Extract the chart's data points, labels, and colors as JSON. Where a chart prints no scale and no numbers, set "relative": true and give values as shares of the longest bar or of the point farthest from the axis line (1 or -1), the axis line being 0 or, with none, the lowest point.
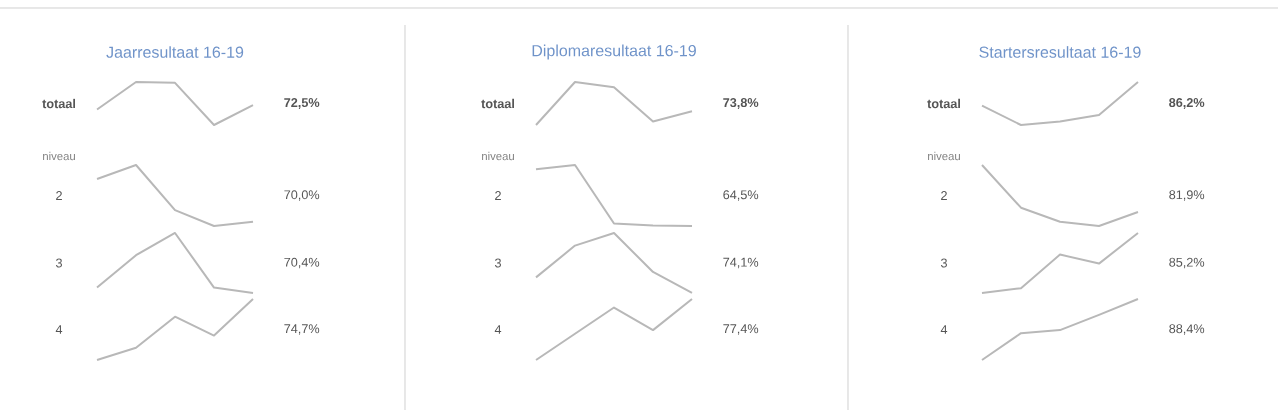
{
  "chart_data": [
    {
      "type": "line",
      "relative": true,
      "title": "Jaarresultaat 16-19",
      "annotations": [
        "72,5%"
      ],
      "categories": [
        null,
        null,
        null,
        null,
        null
      ],
      "series": [
        {
          "name": "totaal",
          "color": "#b8b8b8",
          "values": [
            0.36,
            1,
            0.98,
            0,
            0.46
          ]
        }
      ]
    },
    {
      "type": "line",
      "relative": true,
      "annotations": [
        "niveau",
        "70,0%"
      ],
      "categories": [
        null,
        null,
        null,
        null,
        null
      ],
      "series": [
        {
          "name": "2",
          "color": "#b8b8b8",
          "values": [
            0.77,
            1,
            0.26,
            0,
            0.07
          ]
        }
      ]
    },
    {
      "type": "line",
      "relative": true,
      "annotations": [
        "70,4%"
      ],
      "categories": [
        null,
        null,
        null,
        null,
        null
      ],
      "series": [
        {
          "name": "3",
          "color": "#b8b8b8",
          "values": [
            0.09,
            0.63,
            1,
            0.09,
            0
          ]
        }
      ]
    },
    {
      "type": "line",
      "relative": true,
      "annotations": [
        "74,7%"
      ],
      "categories": [
        null,
        null,
        null,
        null,
        null
      ],
      "series": [
        {
          "name": "4",
          "color": "#b8b8b8",
          "values": [
            0,
            0.2,
            0.71,
            0.4,
            1
          ]
        }
      ]
    },
    {
      "type": "line",
      "relative": true,
      "title": "Diplomaresultaat 16-19",
      "annotations": [
        "73,8%"
      ],
      "categories": [
        null,
        null,
        null,
        null,
        null
      ],
      "series": [
        {
          "name": "totaal",
          "color": "#b8b8b8",
          "values": [
            0,
            1,
            0.88,
            0.08,
            0.32
          ]
        }
      ]
    },
    {
      "type": "line",
      "relative": true,
      "annotations": [
        "niveau",
        "64,5%"
      ],
      "categories": [
        null,
        null,
        null,
        null,
        null
      ],
      "series": [
        {
          "name": "2",
          "color": "#b8b8b8",
          "values": [
            0.93,
            1,
            0.04,
            0.01,
            0
          ]
        }
      ]
    },
    {
      "type": "line",
      "relative": true,
      "annotations": [
        "74,1%"
      ],
      "categories": [
        null,
        null,
        null,
        null,
        null
      ],
      "series": [
        {
          "name": "3",
          "color": "#b8b8b8",
          "values": [
            0.26,
            0.79,
            1,
            0.35,
            0
          ]
        }
      ]
    },
    {
      "type": "line",
      "relative": true,
      "annotations": [
        "77,4%"
      ],
      "categories": [
        null,
        null,
        null,
        null,
        null
      ],
      "series": [
        {
          "name": "4",
          "color": "#b8b8b8",
          "values": [
            0,
            0.43,
            0.86,
            0.49,
            1
          ]
        }
      ]
    },
    {
      "type": "line",
      "relative": true,
      "title": "Startersresultaat 16-19",
      "annotations": [
        "86,2%"
      ],
      "categories": [
        null,
        null,
        null,
        null,
        null
      ],
      "series": [
        {
          "name": "totaal",
          "color": "#b8b8b8",
          "values": [
            0.45,
            0,
            0.08,
            0.23,
            1
          ]
        }
      ]
    },
    {
      "type": "line",
      "relative": true,
      "annotations": [
        "niveau",
        "81,9%"
      ],
      "categories": [
        null,
        null,
        null,
        null,
        null
      ],
      "series": [
        {
          "name": "2",
          "color": "#b8b8b8",
          "values": [
            1,
            0.3,
            0.07,
            0,
            0.23
          ]
        }
      ]
    },
    {
      "type": "line",
      "relative": true,
      "annotations": [
        "85,2%"
      ],
      "categories": [
        null,
        null,
        null,
        null,
        null
      ],
      "series": [
        {
          "name": "3",
          "color": "#b8b8b8",
          "values": [
            0,
            0.08,
            0.64,
            0.49,
            1
          ]
        }
      ]
    },
    {
      "type": "line",
      "relative": true,
      "annotations": [
        "88,4%"
      ],
      "categories": [
        null,
        null,
        null,
        null,
        null
      ],
      "series": [
        {
          "name": "4",
          "color": "#b8b8b8",
          "values": [
            0,
            0.44,
            0.49,
            0.74,
            1
          ]
        }
      ]
    }
  ]
}
